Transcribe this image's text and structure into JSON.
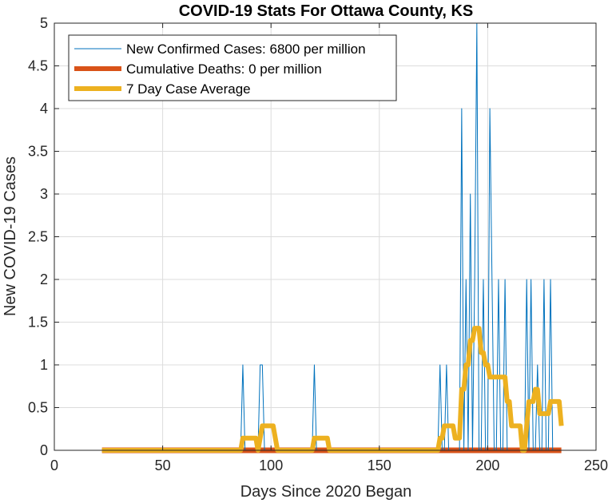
{
  "chart_data": {
    "type": "line",
    "title": "COVID-19 Stats For Ottawa County, KS",
    "xlabel": "Days Since 2020 Began",
    "ylabel": "New COVID-19 Cases",
    "xlim": [
      0,
      250
    ],
    "ylim": [
      0,
      5
    ],
    "xticks": [
      0,
      50,
      100,
      150,
      200,
      250
    ],
    "yticks": [
      0,
      0.5,
      1,
      1.5,
      2,
      2.5,
      3,
      3.5,
      4,
      4.5,
      5
    ],
    "xtick_labels": [
      "0",
      "50",
      "100",
      "150",
      "200",
      "250"
    ],
    "ytick_labels": [
      "0",
      "0.5",
      "1",
      "1.5",
      "2",
      "2.5",
      "3",
      "3.5",
      "4",
      "4.5",
      "5"
    ],
    "grid": true,
    "legend_position": "top-left",
    "series": [
      {
        "name": "New Confirmed Cases: 6800 per million",
        "color": "#0072BD",
        "width": "thin",
        "x": [
          22,
          86,
          87,
          88,
          94,
          95,
          96,
          97,
          119,
          120,
          121,
          177,
          178,
          179,
          180,
          181,
          182,
          187,
          188,
          189,
          190,
          191,
          192,
          193,
          194,
          195,
          196,
          197,
          198,
          199,
          200,
          201,
          202,
          203,
          204,
          205,
          206,
          207,
          208,
          209,
          210,
          216,
          217,
          218,
          219,
          220,
          221,
          222,
          223,
          224,
          225,
          226,
          227,
          228,
          229,
          230,
          231,
          232,
          234
        ],
        "y": [
          0,
          0,
          1,
          0,
          0,
          1,
          1,
          0,
          0,
          1,
          0,
          0,
          1,
          0,
          0,
          1,
          0,
          0,
          4,
          0,
          2,
          0,
          3,
          0,
          2,
          5,
          0,
          0,
          2,
          0,
          0,
          4,
          2,
          0,
          0,
          2,
          0,
          0,
          2,
          0,
          0,
          0,
          0,
          2,
          0,
          2,
          0,
          0,
          1,
          0,
          0,
          2,
          0,
          0,
          2,
          0,
          0,
          0,
          0
        ]
      },
      {
        "name": "Cumulative Deaths: 0 per million",
        "color": "#D95319",
        "width": "thick",
        "x": [
          22,
          234
        ],
        "y": [
          0,
          0
        ]
      },
      {
        "name": "7 Day Case Average",
        "color": "#EDB120",
        "width": "thick",
        "x": [
          22,
          86,
          87,
          88,
          93,
          94,
          95,
          96,
          97,
          101,
          102,
          103,
          119,
          120,
          121,
          126,
          127,
          177,
          178,
          179,
          180,
          181,
          184,
          185,
          186,
          187,
          188,
          189,
          190,
          191,
          192,
          193,
          194,
          195,
          196,
          197,
          198,
          199,
          200,
          201,
          202,
          203,
          204,
          205,
          208,
          209,
          210,
          211,
          213,
          214,
          215,
          216,
          217,
          218,
          219,
          220,
          221,
          222,
          223,
          224,
          225,
          226,
          227,
          228,
          229,
          230,
          231,
          232,
          233,
          234
        ],
        "y": [
          0,
          0,
          0.143,
          0.143,
          0.143,
          0,
          0.143,
          0.286,
          0.286,
          0.286,
          0.143,
          0,
          0,
          0.143,
          0.143,
          0.143,
          0,
          0,
          0.143,
          0.143,
          0.286,
          0.286,
          0.286,
          0.143,
          0.143,
          0.143,
          0.714,
          0.714,
          1,
          1,
          1.286,
          1.286,
          1.429,
          1.429,
          1.429,
          1.143,
          1.143,
          1,
          1,
          0.857,
          0.857,
          0.857,
          0.857,
          0.857,
          0.857,
          0.571,
          0.571,
          0.286,
          0.286,
          0.286,
          0.286,
          0,
          0,
          0.286,
          0.571,
          0.571,
          0.571,
          0.714,
          0.714,
          0.429,
          0.429,
          0.429,
          0.429,
          0.429,
          0.571,
          0.571,
          0.571,
          0.571,
          0.571,
          0.286
        ]
      }
    ]
  }
}
